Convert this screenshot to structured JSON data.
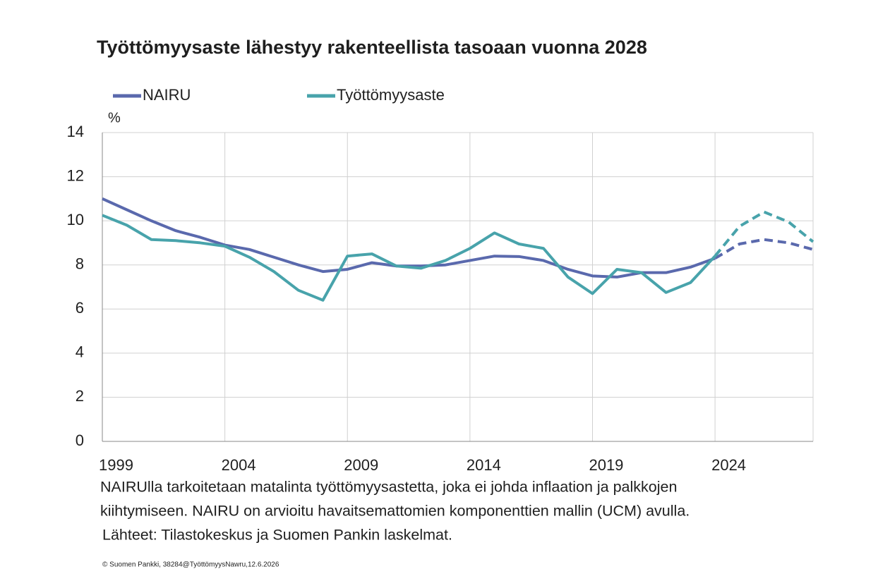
{
  "chart_data": {
    "type": "line",
    "title": "Työttömyysaste lähestyy rakenteellista tasoaan vuonna 2028",
    "y_label": "%",
    "x": [
      1999,
      2000,
      2001,
      2002,
      2003,
      2004,
      2005,
      2006,
      2007,
      2008,
      2009,
      2010,
      2011,
      2012,
      2013,
      2014,
      2015,
      2016,
      2017,
      2018,
      2019,
      2020,
      2021,
      2022,
      2023,
      2024,
      2025,
      2026,
      2027,
      2028
    ],
    "forecast_start": 2024,
    "series": [
      {
        "name": "NAIRU",
        "color": "#5a69ad",
        "values": [
          11.0,
          10.5,
          10.0,
          9.55,
          9.25,
          8.9,
          8.7,
          8.35,
          8.0,
          7.7,
          7.8,
          8.1,
          7.95,
          7.95,
          8.0,
          8.2,
          8.4,
          8.38,
          8.2,
          7.8,
          7.5,
          7.45,
          7.65,
          7.65,
          7.9,
          8.3,
          8.95,
          9.15,
          9.0,
          8.7
        ]
      },
      {
        "name": "Työttömyysaste",
        "color": "#48a3ab",
        "values": [
          10.25,
          9.8,
          9.15,
          9.1,
          9.0,
          8.85,
          8.35,
          7.7,
          6.85,
          6.4,
          8.4,
          8.5,
          7.95,
          7.85,
          8.2,
          8.75,
          9.45,
          8.95,
          8.75,
          7.45,
          6.7,
          7.8,
          7.65,
          6.75,
          7.2,
          8.4,
          9.75,
          10.4,
          9.95,
          9.05
        ]
      }
    ],
    "xlim": [
      1999,
      2028
    ],
    "xticks": [
      1999,
      2004,
      2009,
      2014,
      2019,
      2024
    ],
    "ylim": [
      0,
      14
    ],
    "yticks": [
      0,
      2,
      4,
      6,
      8,
      10,
      12,
      14
    ],
    "grid": true,
    "notes": [
      "NAIRUlla tarkoitetaan matalinta työttömyysastetta, joka ei johda inflaation ja palkkojen",
      "kiihtymiseen. NAIRU on arvioitu havaitsemattomien komponenttien mallin (UCM) avulla.",
      "Lähteet: Tilastokeskus ja Suomen Pankin laskelmat."
    ],
    "footer": "© Suomen Pankki, 38284@TyöttömyysNawru,12.6.2026"
  }
}
